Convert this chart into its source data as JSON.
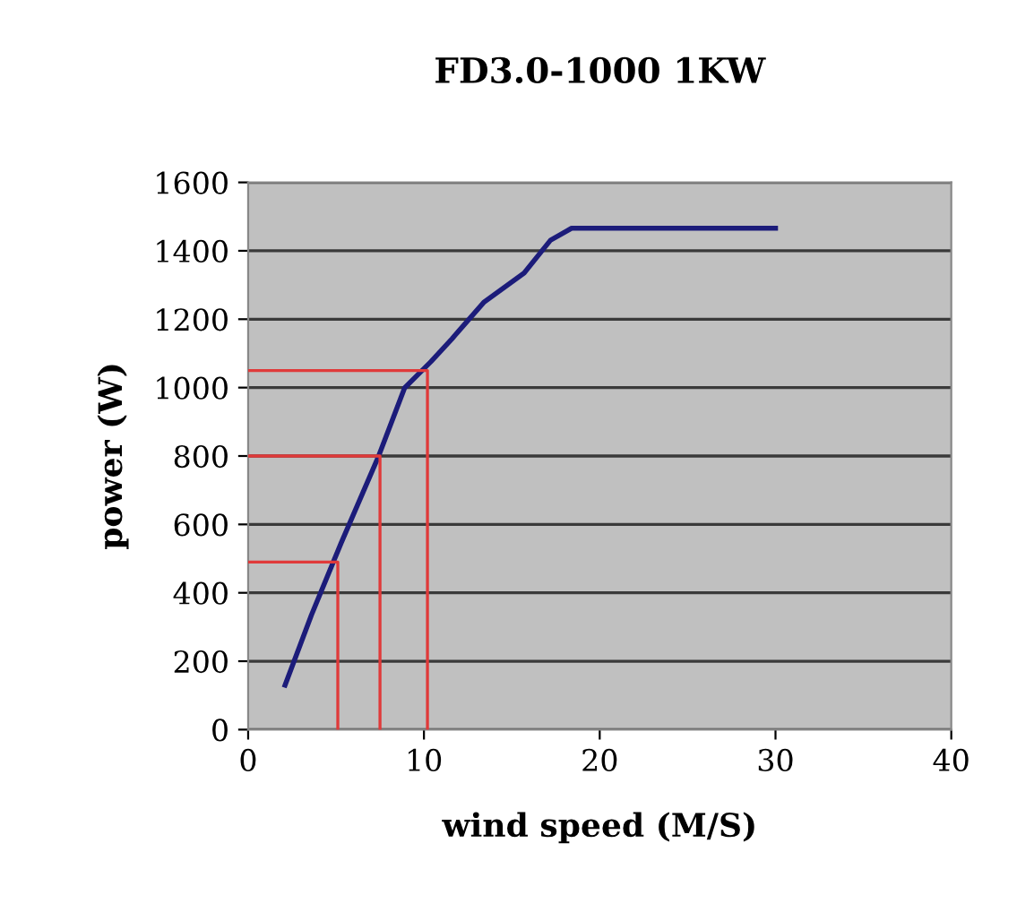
{
  "chart_data": {
    "type": "line",
    "title": "FD3.0-1000 1KW",
    "xlabel": "wind speed (M/S)",
    "ylabel": "power (W)",
    "xlim": [
      0,
      40
    ],
    "xticks": [
      0,
      10,
      20,
      30,
      40
    ],
    "ylim": [
      0,
      1600
    ],
    "yticks": [
      0,
      200,
      400,
      600,
      800,
      1000,
      1200,
      1400,
      1600
    ],
    "grid": "y",
    "legend": false,
    "marker": "none",
    "line_style": "solid",
    "series": [
      {
        "color": "#1c1c7a",
        "x": [
          2.1,
          3.6,
          5.3,
          7.4,
          8.9,
          10.4,
          11.6,
          13.4,
          15.7,
          17.2,
          18.4,
          30
        ],
        "values": [
          130,
          335,
          547,
          797,
          999,
          1076,
          1143,
          1249,
          1335,
          1431,
          1466,
          1466
        ]
      },
      {
        "color": "#e03a3a",
        "x": [
          0,
          5.1,
          5.1
        ],
        "values": [
          490,
          490,
          0
        ]
      },
      {
        "color": "#e03a3a",
        "x": [
          0,
          7.5,
          7.5
        ],
        "values": [
          800,
          800,
          0
        ]
      },
      {
        "color": "#e03a3a",
        "x": [
          0,
          10.2,
          10.2
        ],
        "values": [
          1050,
          1050,
          0
        ]
      }
    ]
  }
}
